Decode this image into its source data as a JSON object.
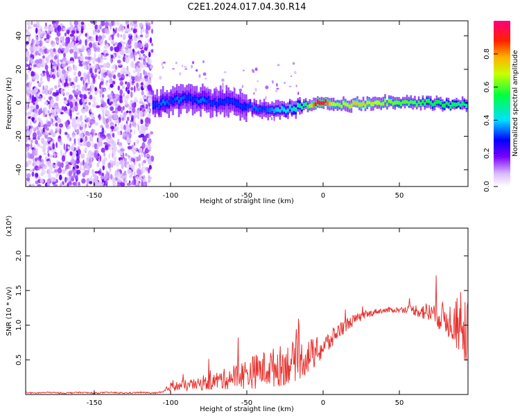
{
  "chart_title": "C2E1.2024.017.04.30.R14",
  "chart_data": [
    {
      "type": "heatmap",
      "title": "C2E1.2024.017.04.30.R14",
      "xlabel": "Height of straight line (km)",
      "ylabel": "Frequency (Hz)",
      "xlim": [
        -195,
        95
      ],
      "ylim": [
        -50,
        49
      ],
      "x_ticks": [
        -150,
        -100,
        -50,
        0,
        50
      ],
      "y_ticks": [
        -40,
        -20,
        0,
        20,
        40
      ],
      "colorbar": {
        "label": "Normalized spectral amplitude",
        "range": [
          0,
          1
        ],
        "ticks": [
          0.0,
          0.2,
          0.4,
          0.6,
          0.8
        ]
      },
      "ridge": {
        "x": [
          -110,
          -105,
          -100,
          -95,
          -90,
          -85,
          -80,
          -75,
          -70,
          -65,
          -60,
          -55,
          -50,
          -45,
          -40,
          -35,
          -30,
          -25,
          -20,
          -15,
          -10,
          -5,
          0,
          5,
          10,
          20,
          30,
          40,
          50,
          60,
          70,
          80,
          90,
          95
        ],
        "y": [
          -2,
          0,
          1,
          2,
          3,
          2,
          1,
          1,
          0,
          1,
          0,
          -1,
          -2,
          -3,
          -4,
          -5,
          -5,
          -4,
          -3,
          -2,
          -1,
          0,
          0,
          -1,
          -1,
          -1,
          -1,
          0,
          0,
          0,
          0,
          -1,
          -1,
          -1
        ],
        "amplitude": [
          0.3,
          0.35,
          0.3,
          0.35,
          0.3,
          0.3,
          0.35,
          0.3,
          0.3,
          0.3,
          0.3,
          0.3,
          0.3,
          0.35,
          0.3,
          0.35,
          0.4,
          0.4,
          0.45,
          0.5,
          0.6,
          0.95,
          0.95,
          0.7,
          0.65,
          0.75,
          0.7,
          0.65,
          0.6,
          0.6,
          0.55,
          0.55,
          0.5,
          0.45
        ]
      }
    },
    {
      "type": "line",
      "xlabel": "Height of straight line (km)",
      "ylabel": "SNR (10 * v/v)",
      "y_multiplier": "(x10⁴)",
      "xlim": [
        -195,
        95
      ],
      "ylim": [
        0,
        2.4
      ],
      "x_ticks": [
        -150,
        -100,
        -50,
        0,
        50
      ],
      "y_ticks": [
        0.5,
        1.0,
        1.5,
        2.0
      ],
      "series": [
        {
          "color": "#e8322e",
          "x": [
            -195,
            -190,
            -180,
            -170,
            -160,
            -150,
            -140,
            -130,
            -120,
            -110,
            -105,
            -100,
            -95,
            -90,
            -85,
            -80,
            -75,
            -70,
            -65,
            -60,
            -55,
            -50,
            -45,
            -40,
            -35,
            -30,
            -25,
            -20,
            -15,
            -10,
            -5,
            0,
            5,
            10,
            15,
            20,
            25,
            30,
            35,
            40,
            45,
            50,
            55,
            60,
            65,
            70,
            75,
            80,
            85,
            90,
            95
          ],
          "values": [
            0.03,
            0.02,
            0.03,
            0.02,
            0.03,
            0.02,
            0.03,
            0.02,
            0.03,
            0.02,
            0.03,
            0.12,
            0.12,
            0.13,
            0.14,
            0.15,
            0.17,
            0.2,
            0.22,
            0.25,
            0.27,
            0.3,
            0.33,
            0.36,
            0.38,
            0.4,
            0.43,
            0.47,
            0.5,
            0.55,
            0.6,
            0.68,
            0.78,
            0.92,
            1.0,
            1.07,
            1.12,
            1.16,
            1.2,
            1.21,
            1.22,
            1.22,
            1.23,
            1.22,
            1.2,
            1.18,
            1.15,
            1.1,
            1.05,
            0.95,
            0.9
          ],
          "noise": [
            0.01,
            0.01,
            0.01,
            0.01,
            0.01,
            0.01,
            0.01,
            0.01,
            0.01,
            0.01,
            0.02,
            0.06,
            0.07,
            0.08,
            0.08,
            0.09,
            0.11,
            0.13,
            0.15,
            0.18,
            0.2,
            0.22,
            0.25,
            0.26,
            0.28,
            0.3,
            0.3,
            0.3,
            0.28,
            0.26,
            0.22,
            0.18,
            0.15,
            0.12,
            0.1,
            0.08,
            0.06,
            0.05,
            0.04,
            0.04,
            0.04,
            0.04,
            0.05,
            0.08,
            0.12,
            0.16,
            0.2,
            0.24,
            0.3,
            0.4,
            0.45
          ]
        }
      ]
    }
  ]
}
